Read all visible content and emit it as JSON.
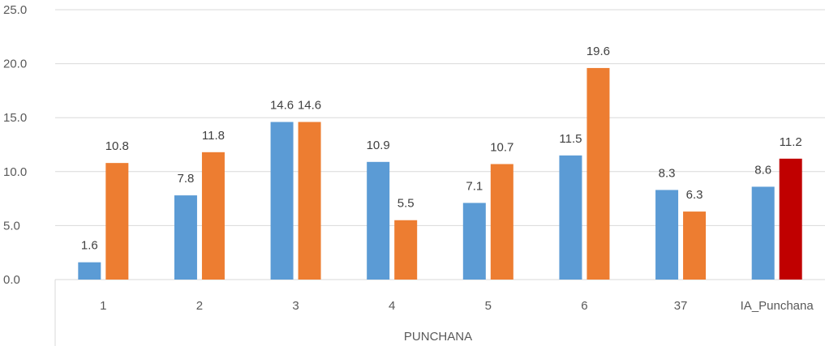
{
  "chart_data": {
    "type": "bar",
    "categories": [
      "1",
      "2",
      "3",
      "4",
      "5",
      "6",
      "37",
      "IA_Punchana"
    ],
    "group_label": "PUNCHANA",
    "series": [
      {
        "values": [
          1.6,
          7.8,
          14.6,
          10.9,
          7.1,
          11.5,
          8.3,
          8.6
        ]
      },
      {
        "values": [
          10.8,
          11.8,
          14.6,
          5.5,
          10.7,
          19.6,
          6.3,
          11.2
        ]
      }
    ],
    "y_ticks": [
      "0.0",
      "5.0",
      "10.0",
      "15.0",
      "20.0",
      "25.0"
    ],
    "ylim": [
      0,
      25
    ],
    "grid": true,
    "colors": {
      "series1": "#5b9bd5",
      "series2": "#ed7d31",
      "series2_highlight": "#c00000"
    },
    "highlight_category": "IA_Punchana"
  }
}
